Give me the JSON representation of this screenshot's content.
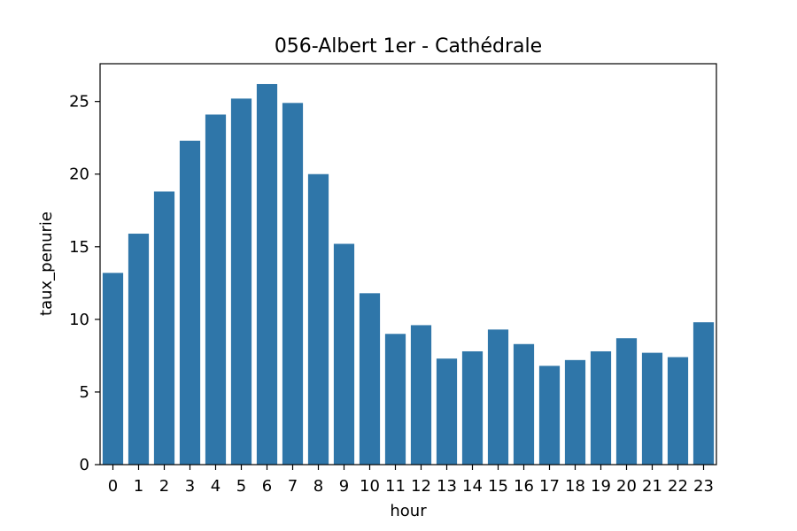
{
  "chart_data": {
    "type": "bar",
    "title": "056-Albert 1er - Cathédrale",
    "xlabel": "hour",
    "ylabel": "taux_penurie",
    "categories": [
      "0",
      "1",
      "2",
      "3",
      "4",
      "5",
      "6",
      "7",
      "8",
      "9",
      "10",
      "11",
      "12",
      "13",
      "14",
      "15",
      "16",
      "17",
      "18",
      "19",
      "20",
      "21",
      "22",
      "23"
    ],
    "values": [
      13.2,
      15.9,
      18.8,
      22.3,
      24.1,
      25.2,
      26.2,
      24.9,
      20.0,
      15.2,
      11.8,
      9.0,
      9.6,
      7.3,
      7.8,
      9.3,
      8.3,
      6.8,
      7.2,
      7.8,
      8.7,
      7.7,
      7.4,
      9.8
    ],
    "ylim": [
      0,
      27.6
    ],
    "yticks": [
      0,
      5,
      10,
      15,
      20,
      25
    ],
    "grid": false,
    "bar_color": "#2f76a9"
  }
}
